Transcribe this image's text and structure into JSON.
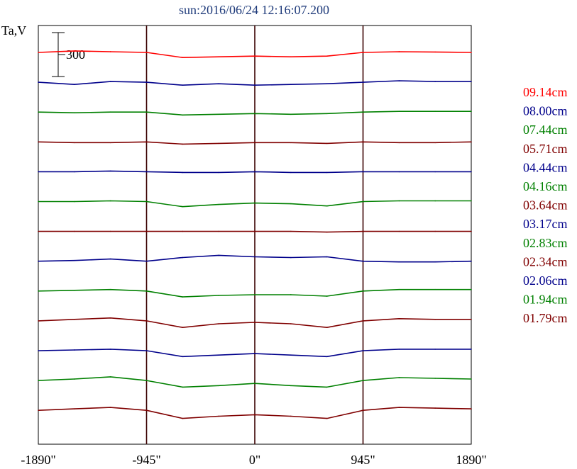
{
  "title": "sun:2016/06/24 12:16:07.200",
  "chart_data": {
    "type": "line",
    "title": "sun:2016/06/24 12:16:07.200",
    "ylabel": "Ta,V",
    "xlabel": "",
    "scale_bar_label": "300",
    "xlim": [
      -1890,
      1890
    ],
    "x_ticks": [
      -1890,
      -945,
      0,
      945,
      1890
    ],
    "x_tick_labels": [
      "-1890\"",
      "-945\"",
      "0\"",
      "945\"",
      "1890\""
    ],
    "vertical_markers": [
      -945,
      0,
      945
    ],
    "grid": false,
    "legend_placement": "right",
    "x": [
      -1890,
      -1575,
      -1260,
      -945,
      -630,
      -315,
      0,
      315,
      630,
      945,
      1260,
      1575,
      1890
    ],
    "series": [
      {
        "name": "09.14cm",
        "color": "#ff0000",
        "values": [
          0,
          10,
          5,
          0,
          -35,
          -30,
          -25,
          -30,
          -25,
          0,
          5,
          3,
          0
        ]
      },
      {
        "name": "08.00cm",
        "color": "#00008b",
        "values": [
          0,
          -15,
          5,
          0,
          -20,
          -10,
          -20,
          -15,
          -10,
          0,
          10,
          5,
          5
        ]
      },
      {
        "name": "07.44cm",
        "color": "#008000",
        "values": [
          0,
          -5,
          0,
          0,
          -20,
          -15,
          -10,
          -15,
          -10,
          0,
          5,
          5,
          5
        ]
      },
      {
        "name": "05.71cm",
        "color": "#800000",
        "values": [
          0,
          -5,
          -5,
          0,
          -15,
          -10,
          -5,
          -5,
          -10,
          0,
          -5,
          -5,
          0
        ]
      },
      {
        "name": "04.44cm",
        "color": "#00008b",
        "values": [
          0,
          0,
          5,
          0,
          -5,
          -5,
          0,
          -5,
          -5,
          0,
          0,
          0,
          0
        ]
      },
      {
        "name": "04.16cm",
        "color": "#008000",
        "values": [
          0,
          0,
          5,
          0,
          -35,
          -20,
          -10,
          -15,
          -30,
          0,
          5,
          5,
          5
        ]
      },
      {
        "name": "03.64cm",
        "color": "#800000",
        "values": [
          0,
          0,
          0,
          0,
          0,
          0,
          0,
          0,
          -5,
          0,
          0,
          0,
          0
        ]
      },
      {
        "name": "03.17cm",
        "color": "#00008b",
        "values": [
          0,
          5,
          15,
          0,
          25,
          40,
          30,
          25,
          30,
          0,
          -5,
          -5,
          0
        ]
      },
      {
        "name": "02.83cm",
        "color": "#008000",
        "values": [
          0,
          5,
          10,
          0,
          -40,
          -30,
          -25,
          -25,
          -35,
          0,
          10,
          10,
          10
        ]
      },
      {
        "name": "02.34cm",
        "color": "#800000",
        "values": [
          0,
          10,
          20,
          0,
          -45,
          -20,
          -10,
          -20,
          -45,
          0,
          15,
          10,
          10
        ]
      },
      {
        "name": "02.06cm",
        "color": "#00008b",
        "values": [
          0,
          5,
          10,
          0,
          -40,
          -30,
          -20,
          -30,
          -40,
          0,
          10,
          10,
          10
        ]
      },
      {
        "name": "01.94cm",
        "color": "#008000",
        "values": [
          0,
          10,
          25,
          0,
          -45,
          -35,
          -20,
          -35,
          -45,
          0,
          20,
          15,
          10
        ]
      },
      {
        "name": "01.79cm",
        "color": "#800000",
        "values": [
          0,
          10,
          20,
          0,
          -55,
          -40,
          -30,
          -40,
          -55,
          0,
          20,
          15,
          10
        ]
      }
    ]
  }
}
